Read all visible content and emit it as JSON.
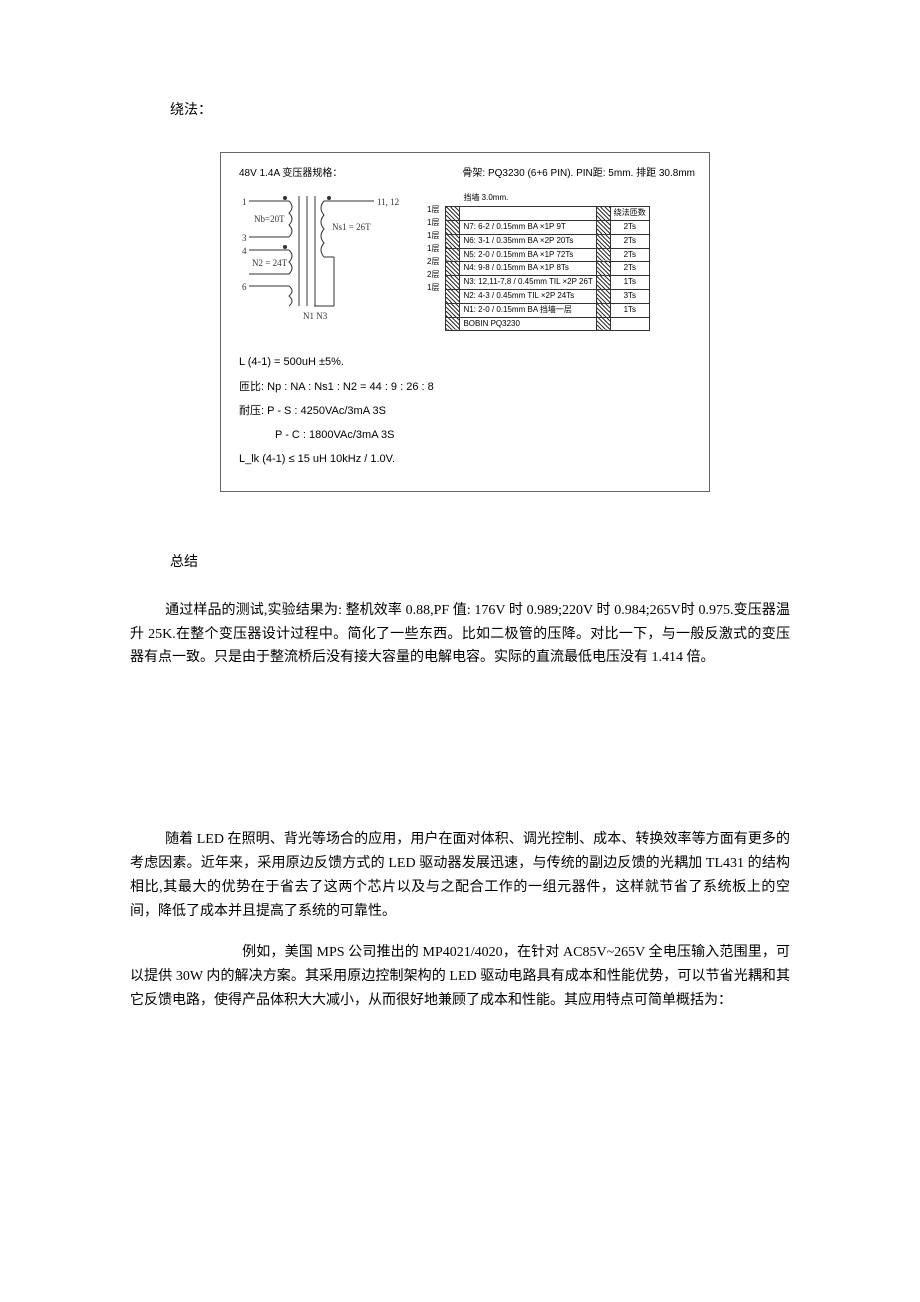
{
  "labels": {
    "winding_method": "绕法：",
    "summary": "总结"
  },
  "figure": {
    "title_spec": "48V 1.4A 变压器规格：",
    "bobbin_spec": "骨架: PQ3230 (6+6 PIN). PIN距: 5mm. 排距 30.8mm",
    "schematic": {
      "pins_left": [
        "1",
        "3",
        "4",
        "6"
      ],
      "pins_right": "11, 12",
      "winding_nb": "Nb=20T",
      "winding_nst": "Ns1 = 26T",
      "winding_n2": "N2 = 24T",
      "bottom_label": "N1 N3"
    },
    "stack": {
      "margin_label": "挡墙 3.0mm.",
      "col_header": "绕法匝数",
      "layers": [
        {
          "layer": "1层",
          "text": "N7: 6-2 / 0.15mm BA ×1P 9T",
          "ts": "2Ts"
        },
        {
          "layer": "1层",
          "text": "N6: 3-1 / 0.35mm BA ×2P 20Ts",
          "ts": "2Ts"
        },
        {
          "layer": "1层",
          "text": "N5: 2-0 / 0.15mm BA ×1P 72Ts",
          "ts": "2Ts"
        },
        {
          "layer": "1层",
          "text": "N4: 9-8 / 0.15mm BA ×1P 8Ts",
          "ts": "2Ts"
        },
        {
          "layer": "2层",
          "text": "N3: 12,11-7,8 / 0.45mm TIL ×2P 26T",
          "ts": "1Ts"
        },
        {
          "layer": "2层",
          "text": "N2: 4-3 / 0.45mm TIL ×2P 24Ts",
          "ts": "3Ts"
        },
        {
          "layer": "1层",
          "text": "N1: 2-0 / 0.15mm BA 挡墙一层",
          "ts": "1Ts"
        },
        {
          "layer": "",
          "text": "BOBIN   PQ3230",
          "ts": ""
        }
      ]
    },
    "specs": {
      "inductance": "L (4-1) = 500uH   ±5%.",
      "ratio_label": "匝比: ",
      "ratio_value": "Np : NA : Ns1 : N2 = 44 : 9 : 26 : 8",
      "hipot_label": "耐压: ",
      "hipot_ps": "P - S :  4250VAc/3mA  3S",
      "hipot_pc": "P - C :  1800VAc/3mA  3S",
      "leakage": "L_lk (4-1) ≤ 15 uH   10kHz / 1.0V."
    }
  },
  "paragraphs": {
    "p1": "通过样品的测试,实验结果为: 整机效率 0.88,PF 值: 176V 时 0.989;220V 时 0.984;265V时 0.975.变压器温升 25K.在整个变压器设计过程中。简化了一些东西。比如二极管的压降。对比一下，与一般反激式的变压器有点一致。只是由于整流桥后没有接大容量的电解电容。实际的直流最低电压没有 1.414 倍。",
    "p2": "随着 LED 在照明、背光等场合的应用，用户在面对体积、调光控制、成本、转换效率等方面有更多的考虑因素。近年来，采用原边反馈方式的 LED 驱动器发展迅速，与传统的副边反馈的光耦加 TL431 的结构相比,其最大的优势在于省去了这两个芯片以及与之配合工作的一组元器件，这样就节省了系统板上的空间，降低了成本并且提高了系统的可靠性。",
    "p3_indent": "例如，美国 MPS 公司推出的 MP4021/4020，在针对 AC85V~265V 全电压输入",
    "p3_rest": "范围里，可以提供 30W 内的解决方案。其采用原边控制架构的 LED 驱动电路具有成本和性能优势，可以节省光耦和其它反馈电路，使得产品体积大大减小，从而很好地兼顾了成本和性能。其应用特点可简单概括为："
  },
  "colors": {
    "text": "#000000",
    "border": "#666666",
    "stroke": "#333333"
  }
}
